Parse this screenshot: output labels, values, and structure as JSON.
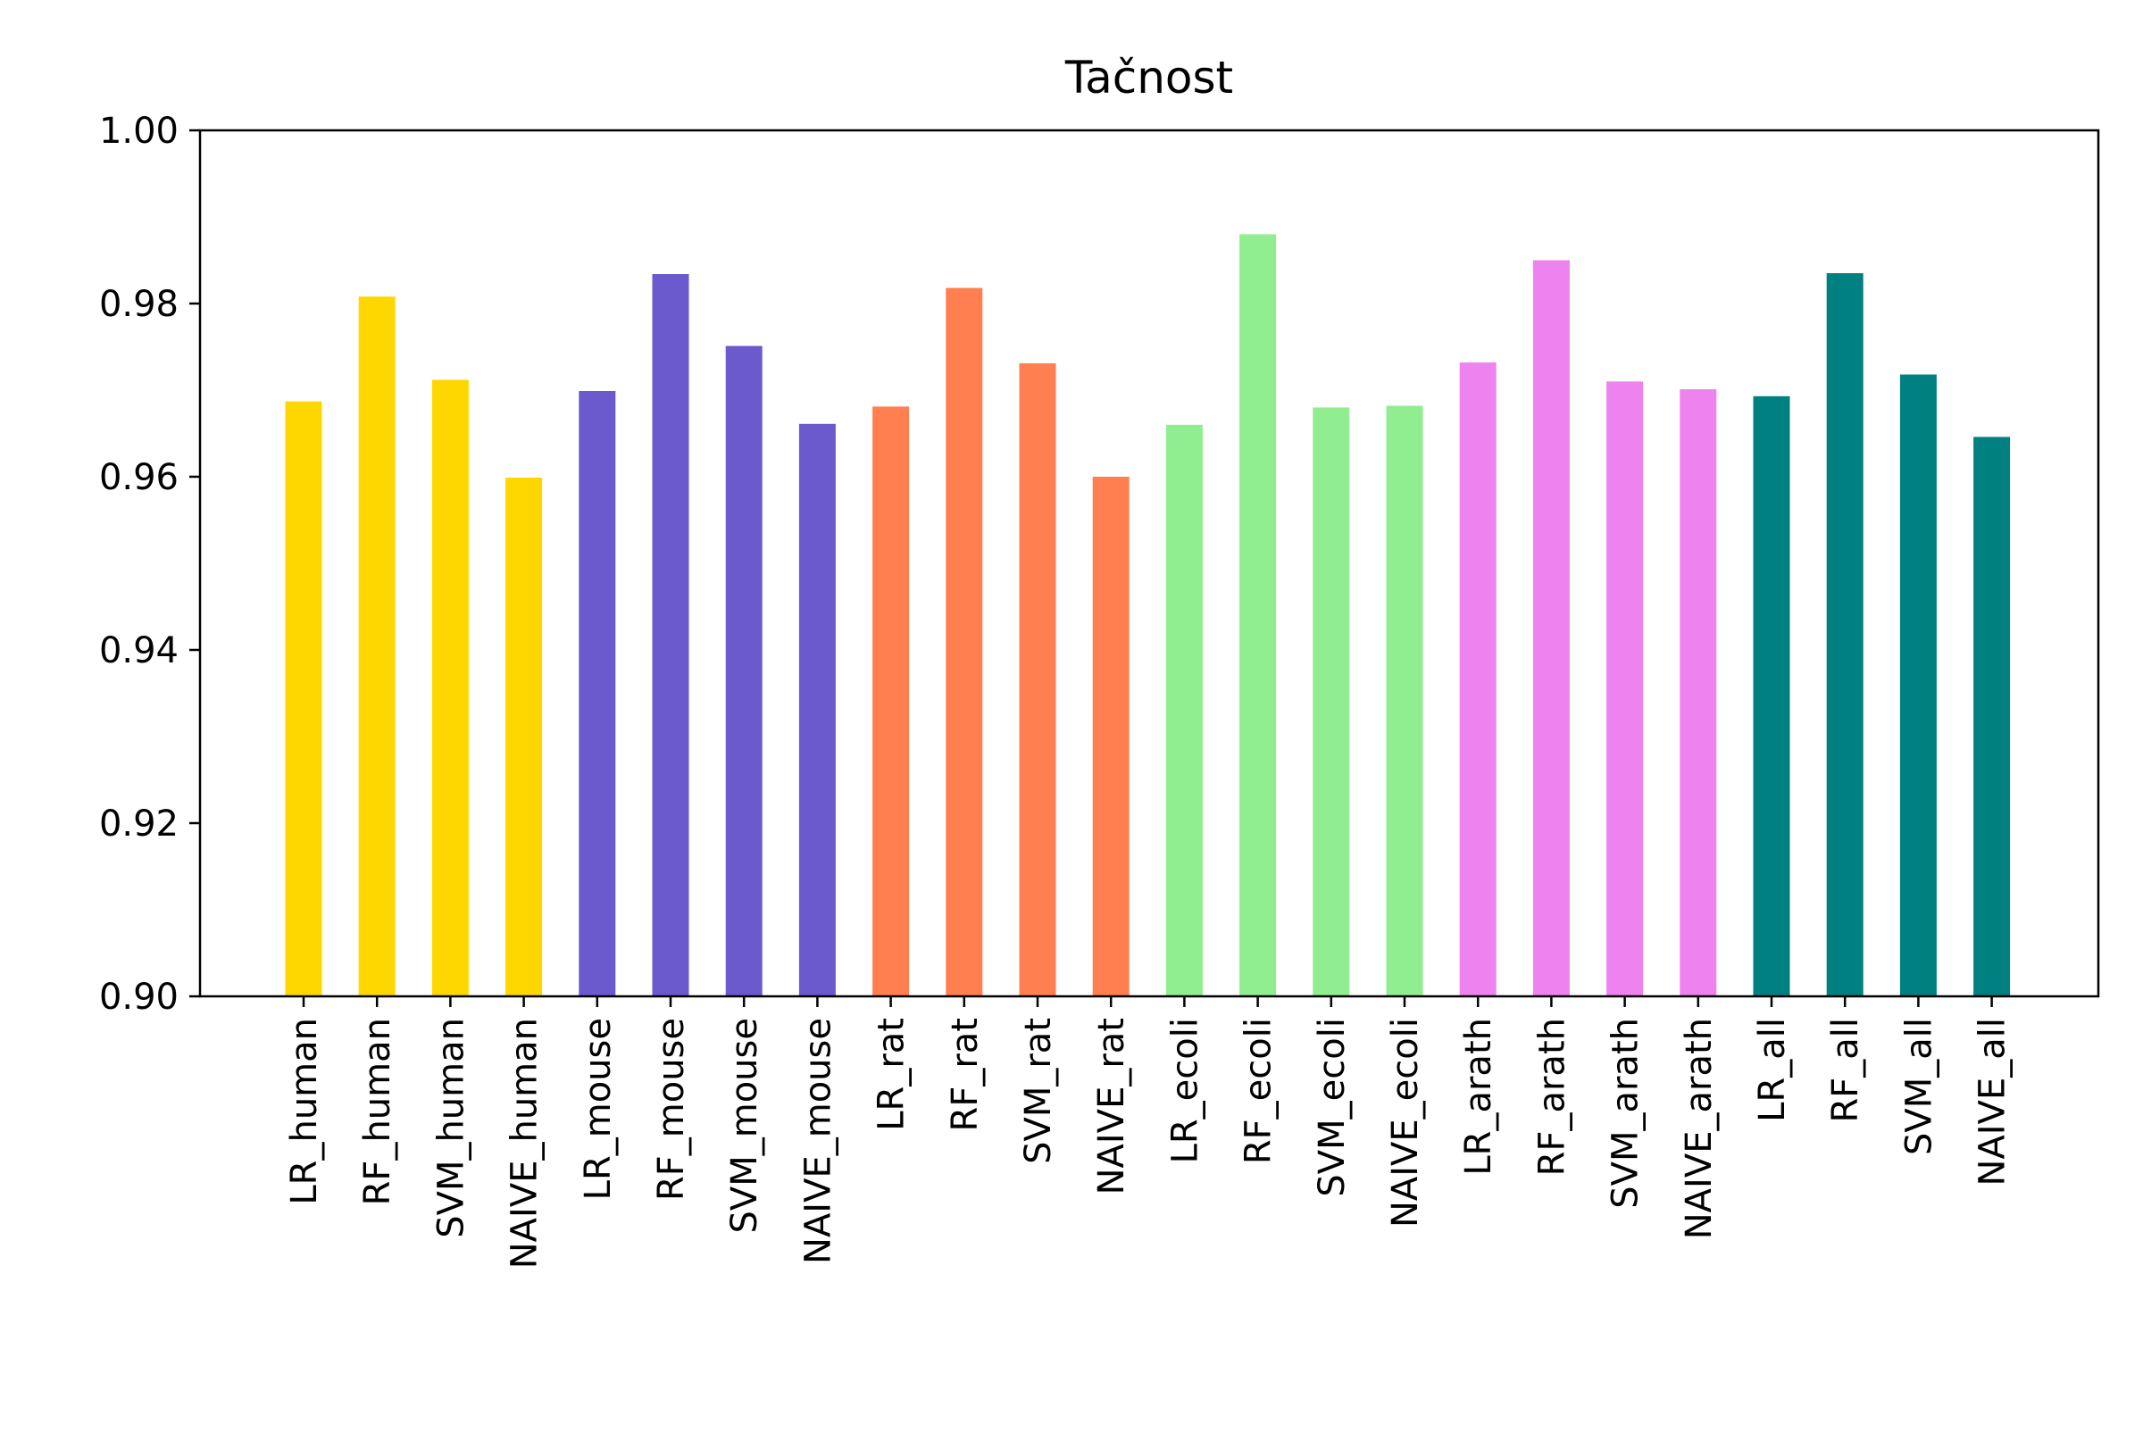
{
  "chart_data": {
    "type": "bar",
    "title": "Tačnost",
    "xlabel": "",
    "ylabel": "",
    "ylim": [
      0.9,
      1.0
    ],
    "yticks": [
      "0.90",
      "0.92",
      "0.94",
      "0.96",
      "0.98",
      "1.00"
    ],
    "grid": false,
    "legend": "none",
    "categories": [
      "LR_human",
      "RF_human",
      "SVM_human",
      "NAIVE_human",
      "LR_mouse",
      "RF_mouse",
      "SVM_mouse",
      "NAIVE_mouse",
      "LR_rat",
      "RF_rat",
      "SVM_rat",
      "NAIVE_rat",
      "LR_ecoli",
      "RF_ecoli",
      "SVM_ecoli",
      "NAIVE_ecoli",
      "LR_arath",
      "RF_arath",
      "SVM_arath",
      "NAIVE_arath",
      "LR_all",
      "RF_all",
      "SVM_all",
      "NAIVE_all"
    ],
    "values": [
      0.9687,
      0.9808,
      0.9712,
      0.9599,
      0.9699,
      0.9834,
      0.9751,
      0.9661,
      0.9681,
      0.9818,
      0.9731,
      0.96,
      0.966,
      0.988,
      0.968,
      0.9682,
      0.9732,
      0.985,
      0.971,
      0.9701,
      0.9693,
      0.9835,
      0.9718,
      0.9646
    ],
    "colors": [
      "#FFD700",
      "#FFD700",
      "#FFD700",
      "#FFD700",
      "#6A5ACD",
      "#6A5ACD",
      "#6A5ACD",
      "#6A5ACD",
      "#FF7F50",
      "#FF7F50",
      "#FF7F50",
      "#FF7F50",
      "#90EE90",
      "#90EE90",
      "#90EE90",
      "#90EE90",
      "#EE82EE",
      "#EE82EE",
      "#EE82EE",
      "#EE82EE",
      "#008080",
      "#008080",
      "#008080",
      "#008080"
    ]
  }
}
